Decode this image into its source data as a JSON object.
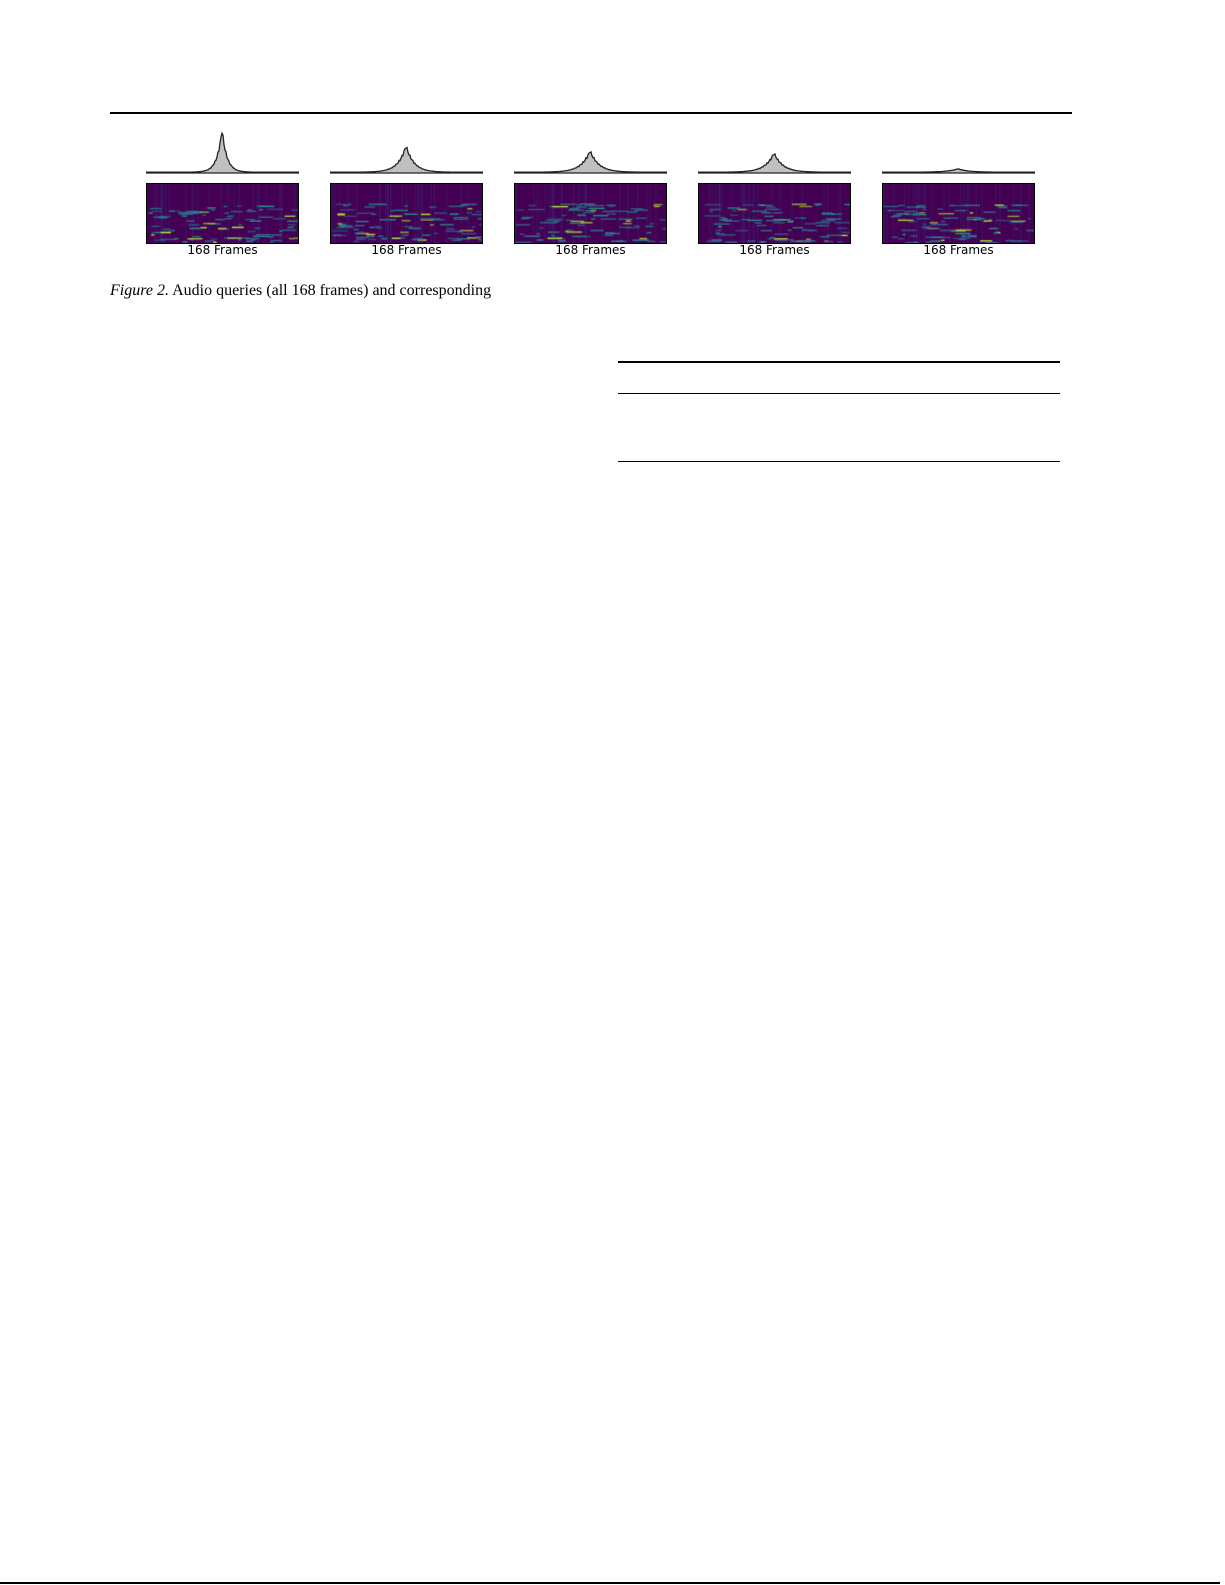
{
  "figure": {
    "panels": [
      {
        "label": "168 Frames",
        "relative_peak": 1.0,
        "spread": 5
      },
      {
        "label": "168 Frames",
        "relative_peak": 0.62,
        "spread": 8
      },
      {
        "label": "168 Frames",
        "relative_peak": 0.5,
        "spread": 9
      },
      {
        "label": "168 Frames",
        "relative_peak": 0.45,
        "spread": 9
      },
      {
        "label": "168 Frames",
        "relative_peak": 0.08,
        "spread": 10
      }
    ],
    "colors": {
      "hist_fill": "#c0c0c0",
      "hist_line": "#222222",
      "spec_bg": "#440154",
      "spec_mid": "#31688e",
      "spec_high": "#b5de2b"
    }
  },
  "caption": {
    "label": "Figure 2.",
    "text": " Audio queries (all 168 frames) and corresponding"
  }
}
